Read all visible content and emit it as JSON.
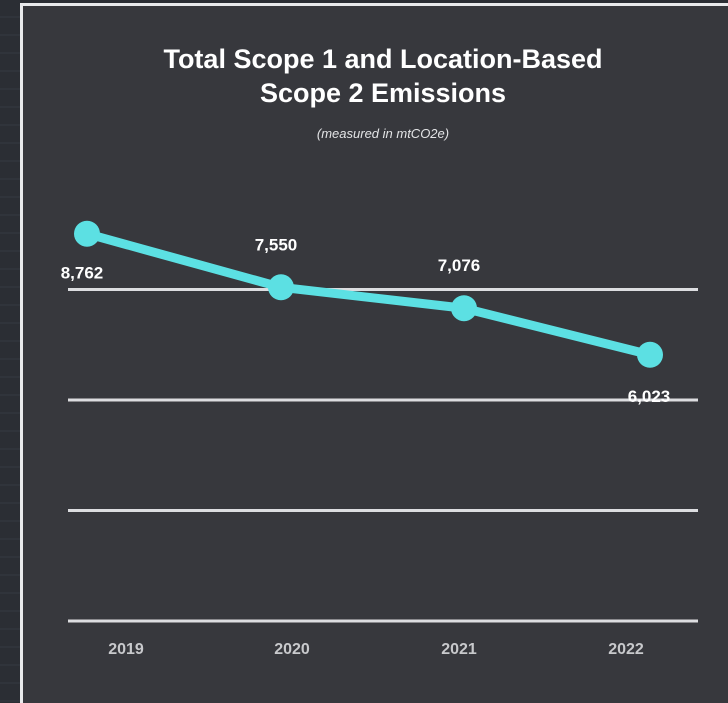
{
  "chart_data": {
    "type": "line",
    "title_lines": [
      "Total Scope 1 and Location-Based",
      "Scope 2 Emissions"
    ],
    "subtitle": "(measured in mtCO2e)",
    "categories": [
      "2019",
      "2020",
      "2021",
      "2022"
    ],
    "series": [
      {
        "values": [
          8762,
          7550,
          7076,
          6023
        ],
        "labels": [
          "8,762",
          "7,550",
          "7,076",
          "6,023"
        ],
        "color": "#5ce0e3"
      }
    ],
    "ylim": [
      0,
      10000
    ],
    "gridlines": [
      0,
      2500,
      5000,
      7500
    ],
    "grid": true,
    "legend": "none",
    "colors": {
      "background": "#37383d",
      "gridline": "#dcdde0",
      "line": "#5ce0e3"
    }
  }
}
